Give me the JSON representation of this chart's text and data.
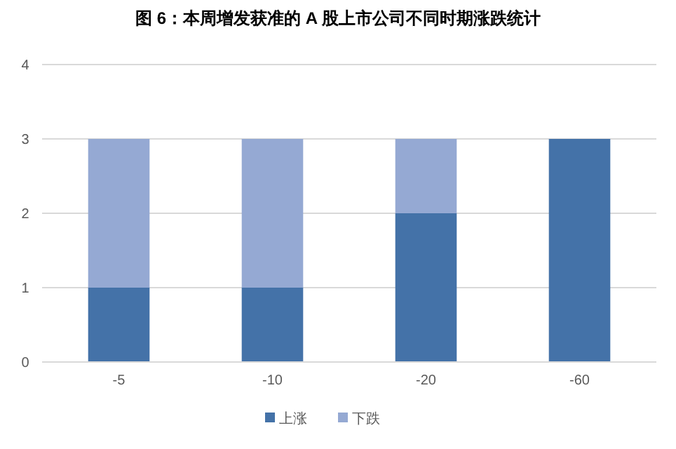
{
  "chart_data": {
    "type": "bar",
    "title": "图 6：本周增发获准的 A 股上市公司不同时期涨跌统计",
    "categories": [
      "-5",
      "-10",
      "-20",
      "-60"
    ],
    "stacked": true,
    "series": [
      {
        "name": "上涨",
        "color": "#4472a8",
        "values": [
          1,
          1,
          2,
          3
        ]
      },
      {
        "name": "下跌",
        "color": "#95a9d3",
        "values": [
          2,
          2,
          1,
          0
        ]
      }
    ],
    "ylim": [
      0,
      4
    ],
    "yticks": [
      0,
      1,
      2,
      3,
      4
    ],
    "grid": "y",
    "legend": "bottom"
  }
}
